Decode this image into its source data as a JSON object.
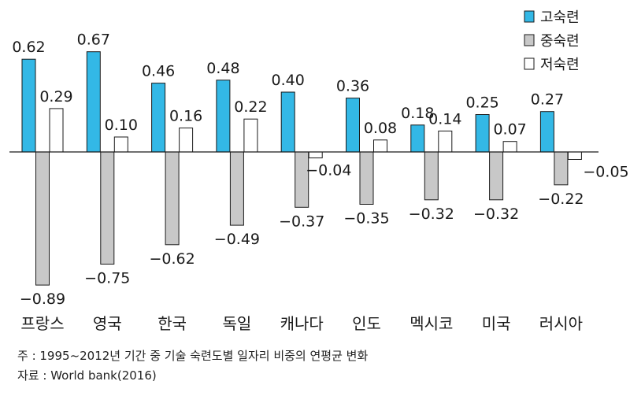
{
  "chart_data": {
    "type": "bar",
    "categories": [
      "프랑스",
      "영국",
      "한국",
      "독일",
      "캐나다",
      "인도",
      "멕시코",
      "미국",
      "러시아"
    ],
    "series": [
      {
        "name": "고숙련",
        "color": "#33b8e6",
        "values": [
          0.62,
          0.67,
          0.46,
          0.48,
          0.4,
          0.36,
          0.18,
          0.25,
          0.27
        ],
        "labels": [
          "0.62",
          "0.67",
          "0.46",
          "0.48",
          "0.40",
          "0.36",
          "0.18",
          "0.25",
          "0.27"
        ]
      },
      {
        "name": "중숙련",
        "color": "#c8c8c8",
        "values": [
          -0.89,
          -0.75,
          -0.62,
          -0.49,
          -0.37,
          -0.35,
          -0.32,
          -0.32,
          -0.22
        ],
        "labels": [
          "−0.89",
          "−0.75",
          "−0.62",
          "−0.49",
          "−0.37",
          "−0.35",
          "−0.32",
          "−0.32",
          "−0.22"
        ]
      },
      {
        "name": "저숙련",
        "color": "#ffffff",
        "values": [
          0.29,
          0.1,
          0.16,
          0.22,
          -0.04,
          0.08,
          0.14,
          0.07,
          -0.05
        ],
        "labels": [
          "0.29",
          "0.10",
          "0.16",
          "0.22",
          "−0.04",
          "0.08",
          "0.14",
          "0.07",
          "−0.05"
        ]
      }
    ],
    "ylim": [
      -0.95,
      0.75
    ],
    "title": "",
    "xlabel": "",
    "ylabel": "",
    "legend_position": "top-right",
    "grid": false
  },
  "footnotes": {
    "note": "주 : 1995~2012년 기간 중 기술 숙련도별 일자리 비중의 연평균 변화",
    "source": "자료 : World bank(2016)"
  }
}
